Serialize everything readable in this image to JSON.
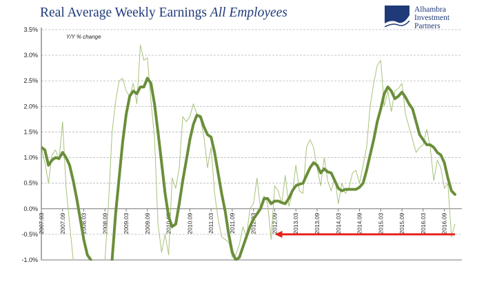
{
  "title": {
    "main": "Real Average Weekly Earnings",
    "emphasis": "All Employees"
  },
  "logo": {
    "icon": "alhambra-wave-logo-icon",
    "lines": [
      "Alhambra",
      "Investment",
      "Partners"
    ],
    "color": "#1f3a78"
  },
  "colors": {
    "thick": "#6a8e3a",
    "thin": "#a6c27a",
    "arrow": "#e8211c",
    "grid": "#b5b5b5",
    "title": "#1f3a78"
  },
  "chart_data": {
    "type": "line",
    "annotation": "Y/Y % change",
    "y_unit": "%",
    "ylim": [
      -1.0,
      3.5
    ],
    "y_ticks": [
      3.5,
      3.0,
      2.5,
      2.0,
      1.5,
      1.0,
      0.5,
      0.0,
      -0.5,
      -1.0
    ],
    "y_tick_labels": [
      "3.5%",
      "3.0%",
      "2.5%",
      "2.0%",
      "1.5%",
      "1.0%",
      "0.5%",
      "0.0%",
      "-0.5%",
      "-1.0%"
    ],
    "x_range": [
      "2007-03",
      "2016-12"
    ],
    "x_ticks": [
      "2007-03",
      "2007-09",
      "2008-03",
      "2008-09",
      "2009-03",
      "2009-09",
      "2010-03",
      "2010-09",
      "2011-03",
      "2011-09",
      "2012-03",
      "2012-09",
      "2013-03",
      "2013-09",
      "2014-03",
      "2014-09",
      "2015-03",
      "2015-09",
      "2016-03",
      "2016-09"
    ],
    "x_tick_labels": [
      "2007.03",
      "2007.09",
      "2008.03",
      "2008.09",
      "2009.03",
      "2009.09",
      "2010.03",
      "2010.09",
      "2011.03",
      "2011.09",
      "2012.03",
      "2012.09",
      "2013.03",
      "2013.09",
      "2014.03",
      "2014.09",
      "2015.03",
      "2015.09",
      "2016.03",
      "2016.09"
    ],
    "grid": "horizontal dashed",
    "series": [
      {
        "style": "thick",
        "points": [
          [
            "2007-03",
            1.2
          ],
          [
            "2007-04",
            1.15
          ],
          [
            "2007-05",
            0.85
          ],
          [
            "2007-06",
            0.95
          ],
          [
            "2007-07",
            1.0
          ],
          [
            "2007-08",
            0.98
          ],
          [
            "2007-09",
            1.1
          ],
          [
            "2007-10",
            1.0
          ],
          [
            "2007-11",
            0.85
          ],
          [
            "2007-12",
            0.55
          ],
          [
            "2008-01",
            0.2
          ],
          [
            "2008-02",
            -0.2
          ],
          [
            "2008-03",
            -0.6
          ],
          [
            "2008-04",
            -0.9
          ],
          [
            "2008-05",
            -1.0
          ],
          [
            "2008-11",
            -1.0
          ],
          [
            "2008-12",
            -0.1
          ],
          [
            "2009-01",
            0.6
          ],
          [
            "2009-02",
            1.3
          ],
          [
            "2009-03",
            1.85
          ],
          [
            "2009-04",
            2.2
          ],
          [
            "2009-05",
            2.3
          ],
          [
            "2009-06",
            2.25
          ],
          [
            "2009-07",
            2.38
          ],
          [
            "2009-08",
            2.38
          ],
          [
            "2009-09",
            2.55
          ],
          [
            "2009-10",
            2.45
          ],
          [
            "2009-11",
            2.05
          ],
          [
            "2009-12",
            1.5
          ],
          [
            "2010-01",
            0.9
          ],
          [
            "2010-02",
            0.3
          ],
          [
            "2010-03",
            -0.15
          ],
          [
            "2010-04",
            -0.35
          ],
          [
            "2010-05",
            -0.3
          ],
          [
            "2010-06",
            0.1
          ],
          [
            "2010-07",
            0.55
          ],
          [
            "2010-08",
            0.95
          ],
          [
            "2010-09",
            1.35
          ],
          [
            "2010-10",
            1.65
          ],
          [
            "2010-11",
            1.83
          ],
          [
            "2010-12",
            1.8
          ],
          [
            "2011-01",
            1.6
          ],
          [
            "2011-02",
            1.45
          ],
          [
            "2011-03",
            1.4
          ],
          [
            "2011-04",
            1.1
          ],
          [
            "2011-05",
            0.7
          ],
          [
            "2011-06",
            0.3
          ],
          [
            "2011-07",
            -0.05
          ],
          [
            "2011-08",
            -0.5
          ],
          [
            "2011-09",
            -0.85
          ],
          [
            "2011-10",
            -1.0
          ],
          [
            "2011-11",
            -0.95
          ],
          [
            "2011-12",
            -0.75
          ],
          [
            "2012-01",
            -0.55
          ],
          [
            "2012-02",
            -0.35
          ],
          [
            "2012-03",
            -0.2
          ],
          [
            "2012-04",
            -0.1
          ],
          [
            "2012-05",
            0.0
          ],
          [
            "2012-06",
            0.2
          ],
          [
            "2012-07",
            0.2
          ],
          [
            "2012-08",
            0.1
          ],
          [
            "2012-09",
            0.15
          ],
          [
            "2012-10",
            0.15
          ],
          [
            "2012-11",
            0.12
          ],
          [
            "2012-12",
            0.1
          ],
          [
            "2013-01",
            0.2
          ],
          [
            "2013-02",
            0.35
          ],
          [
            "2013-03",
            0.45
          ],
          [
            "2013-04",
            0.48
          ],
          [
            "2013-05",
            0.5
          ],
          [
            "2013-06",
            0.65
          ],
          [
            "2013-07",
            0.8
          ],
          [
            "2013-08",
            0.9
          ],
          [
            "2013-09",
            0.85
          ],
          [
            "2013-10",
            0.7
          ],
          [
            "2013-11",
            0.78
          ],
          [
            "2013-12",
            0.72
          ],
          [
            "2014-01",
            0.7
          ],
          [
            "2014-02",
            0.55
          ],
          [
            "2014-03",
            0.4
          ],
          [
            "2014-04",
            0.35
          ],
          [
            "2014-05",
            0.38
          ],
          [
            "2014-06",
            0.38
          ],
          [
            "2014-07",
            0.38
          ],
          [
            "2014-08",
            0.38
          ],
          [
            "2014-09",
            0.42
          ],
          [
            "2014-10",
            0.5
          ],
          [
            "2014-11",
            0.75
          ],
          [
            "2014-12",
            1.05
          ],
          [
            "2015-01",
            1.35
          ],
          [
            "2015-02",
            1.7
          ],
          [
            "2015-03",
            1.95
          ],
          [
            "2015-04",
            2.25
          ],
          [
            "2015-05",
            2.38
          ],
          [
            "2015-06",
            2.3
          ],
          [
            "2015-07",
            2.15
          ],
          [
            "2015-08",
            2.2
          ],
          [
            "2015-09",
            2.28
          ],
          [
            "2015-10",
            2.18
          ],
          [
            "2015-11",
            2.05
          ],
          [
            "2015-12",
            1.95
          ],
          [
            "2016-01",
            1.7
          ],
          [
            "2016-02",
            1.45
          ],
          [
            "2016-03",
            1.35
          ],
          [
            "2016-04",
            1.25
          ],
          [
            "2016-05",
            1.25
          ],
          [
            "2016-06",
            1.2
          ],
          [
            "2016-07",
            1.1
          ],
          [
            "2016-08",
            1.05
          ],
          [
            "2016-09",
            0.9
          ],
          [
            "2016-10",
            0.6
          ],
          [
            "2016-11",
            0.35
          ],
          [
            "2016-12",
            0.28
          ]
        ]
      },
      {
        "style": "thin",
        "points": [
          [
            "2007-03",
            1.2
          ],
          [
            "2007-04",
            0.9
          ],
          [
            "2007-05",
            0.5
          ],
          [
            "2007-06",
            1.05
          ],
          [
            "2007-07",
            1.15
          ],
          [
            "2007-08",
            0.95
          ],
          [
            "2007-09",
            1.7
          ],
          [
            "2007-10",
            0.4
          ],
          [
            "2007-11",
            -0.3
          ],
          [
            "2007-12",
            -1.0
          ],
          [
            "2008-09",
            -1.0
          ],
          [
            "2008-10",
            0.1
          ],
          [
            "2008-11",
            1.5
          ],
          [
            "2008-12",
            2.1
          ],
          [
            "2009-01",
            2.5
          ],
          [
            "2009-02",
            2.55
          ],
          [
            "2009-03",
            2.3
          ],
          [
            "2009-04",
            2.2
          ],
          [
            "2009-05",
            2.45
          ],
          [
            "2009-06",
            2.05
          ],
          [
            "2009-07",
            3.2
          ],
          [
            "2009-08",
            2.9
          ],
          [
            "2009-09",
            2.95
          ],
          [
            "2009-10",
            2.1
          ],
          [
            "2009-11",
            1.4
          ],
          [
            "2009-12",
            -0.3
          ],
          [
            "2010-01",
            -0.85
          ],
          [
            "2010-02",
            -0.5
          ],
          [
            "2010-03",
            -0.9
          ],
          [
            "2010-04",
            0.6
          ],
          [
            "2010-05",
            0.4
          ],
          [
            "2010-06",
            0.8
          ],
          [
            "2010-07",
            1.8
          ],
          [
            "2010-08",
            1.7
          ],
          [
            "2010-09",
            1.8
          ],
          [
            "2010-10",
            2.05
          ],
          [
            "2010-11",
            1.85
          ],
          [
            "2010-12",
            1.75
          ],
          [
            "2011-01",
            1.4
          ],
          [
            "2011-02",
            0.8
          ],
          [
            "2011-03",
            1.2
          ],
          [
            "2011-04",
            0.3
          ],
          [
            "2011-05",
            -0.2
          ],
          [
            "2011-06",
            -0.55
          ],
          [
            "2011-07",
            -0.6
          ],
          [
            "2011-08",
            -0.65
          ],
          [
            "2011-09",
            -0.95
          ],
          [
            "2011-10",
            -0.9
          ],
          [
            "2011-11",
            -0.7
          ],
          [
            "2011-12",
            -0.35
          ],
          [
            "2012-01",
            -0.55
          ],
          [
            "2012-02",
            0.0
          ],
          [
            "2012-03",
            0.1
          ],
          [
            "2012-04",
            0.6
          ],
          [
            "2012-05",
            0.0
          ],
          [
            "2012-06",
            0.25
          ],
          [
            "2012-07",
            0.1
          ],
          [
            "2012-08",
            -0.6
          ],
          [
            "2012-09",
            0.45
          ],
          [
            "2012-10",
            0.35
          ],
          [
            "2012-11",
            0.1
          ],
          [
            "2012-12",
            0.65
          ],
          [
            "2013-01",
            0.05
          ],
          [
            "2013-02",
            0.3
          ],
          [
            "2013-03",
            0.85
          ],
          [
            "2013-04",
            0.35
          ],
          [
            "2013-05",
            0.3
          ],
          [
            "2013-06",
            1.2
          ],
          [
            "2013-07",
            1.35
          ],
          [
            "2013-08",
            1.2
          ],
          [
            "2013-09",
            0.8
          ],
          [
            "2013-10",
            0.45
          ],
          [
            "2013-11",
            1.0
          ],
          [
            "2013-12",
            0.55
          ],
          [
            "2014-01",
            0.35
          ],
          [
            "2014-02",
            0.6
          ],
          [
            "2014-03",
            0.1
          ],
          [
            "2014-04",
            0.5
          ],
          [
            "2014-05",
            0.3
          ],
          [
            "2014-06",
            0.4
          ],
          [
            "2014-07",
            0.7
          ],
          [
            "2014-08",
            0.75
          ],
          [
            "2014-09",
            0.5
          ],
          [
            "2014-10",
            0.85
          ],
          [
            "2014-11",
            1.2
          ],
          [
            "2014-12",
            2.0
          ],
          [
            "2015-01",
            2.45
          ],
          [
            "2015-02",
            2.8
          ],
          [
            "2015-03",
            2.9
          ],
          [
            "2015-04",
            2.0
          ],
          [
            "2015-05",
            2.3
          ],
          [
            "2015-06",
            1.9
          ],
          [
            "2015-07",
            2.3
          ],
          [
            "2015-08",
            2.35
          ],
          [
            "2015-09",
            2.45
          ],
          [
            "2015-10",
            1.85
          ],
          [
            "2015-11",
            1.6
          ],
          [
            "2015-12",
            1.35
          ],
          [
            "2016-01",
            1.1
          ],
          [
            "2016-02",
            1.2
          ],
          [
            "2016-03",
            1.25
          ],
          [
            "2016-04",
            1.55
          ],
          [
            "2016-05",
            1.2
          ],
          [
            "2016-06",
            0.55
          ],
          [
            "2016-07",
            0.95
          ],
          [
            "2016-08",
            0.8
          ],
          [
            "2016-09",
            0.4
          ],
          [
            "2016-10",
            0.5
          ],
          [
            "2016-11",
            -0.55
          ],
          [
            "2016-12",
            -0.3
          ]
        ]
      }
    ],
    "arrow": {
      "from": [
        "2016-12",
        -0.5
      ],
      "to": [
        "2012-09",
        -0.5
      ]
    }
  }
}
